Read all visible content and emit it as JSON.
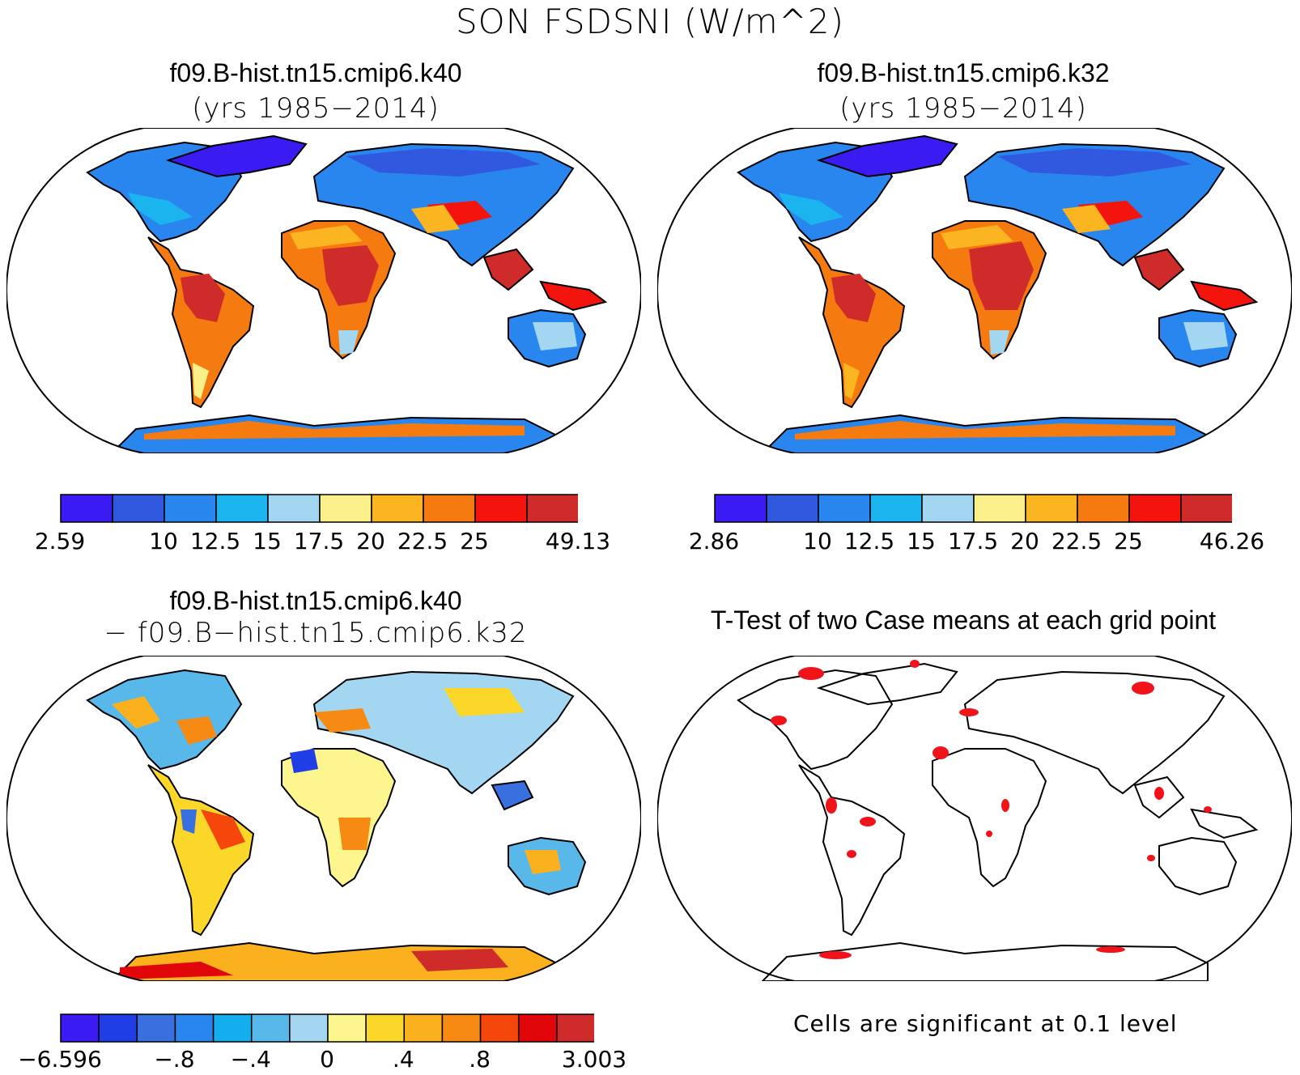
{
  "figure_title": "SON FSDSNI (W/m^2)",
  "panels": {
    "top_left": {
      "title_line1": "f09.B-hist.tn15.cmip6.k40",
      "title_line2": "(yrs 1985−2014)",
      "colorbar": {
        "colors": [
          "#3a1cf2",
          "#3159e0",
          "#2a86ef",
          "#1cb4ee",
          "#a3d6f0",
          "#fbf08a",
          "#fbb520",
          "#f57b10",
          "#f2140d",
          "#cf2b2b"
        ],
        "labels": [
          "2.59",
          "10",
          "12.5",
          "15",
          "17.5",
          "20",
          "22.5",
          "25",
          "49.13"
        ],
        "label_boundaries": [
          0,
          2,
          3,
          4,
          5,
          6,
          7,
          8,
          10
        ]
      }
    },
    "top_right": {
      "title_line1": "f09.B-hist.tn15.cmip6.k32",
      "title_line2": "(yrs 1985−2014)",
      "colorbar": {
        "colors": [
          "#3a1cf2",
          "#3159e0",
          "#2a86ef",
          "#1cb4ee",
          "#a3d6f0",
          "#fbf08a",
          "#fbb520",
          "#f57b10",
          "#f2140d",
          "#cf2b2b"
        ],
        "labels": [
          "2.86",
          "10",
          "12.5",
          "15",
          "17.5",
          "20",
          "22.5",
          "25",
          "46.26"
        ],
        "label_boundaries": [
          0,
          2,
          3,
          4,
          5,
          6,
          7,
          8,
          10
        ]
      }
    },
    "bottom_left": {
      "title_line1": "f09.B-hist.tn15.cmip6.k40",
      "title_line2": "− f09.B−hist.tn15.cmip6.k32",
      "colorbar": {
        "colors": [
          "#3a1cf2",
          "#1f3ee6",
          "#3a6fe0",
          "#2a86ef",
          "#13aeeb",
          "#58b8ea",
          "#a3d6f0",
          "#fdf58e",
          "#fbd72a",
          "#fbb01e",
          "#f78a12",
          "#f5460c",
          "#e0060a",
          "#cf2b2b"
        ],
        "labels": [
          "−6.596",
          "−.8",
          "−.4",
          "0",
          ".4",
          ".8",
          "3.003"
        ],
        "label_boundaries": [
          0,
          3,
          5,
          7,
          9,
          11,
          14
        ]
      }
    },
    "bottom_right": {
      "title": "T-Test of two Case means at each grid point",
      "note": "Cells are significant at 0.1 level"
    }
  }
}
